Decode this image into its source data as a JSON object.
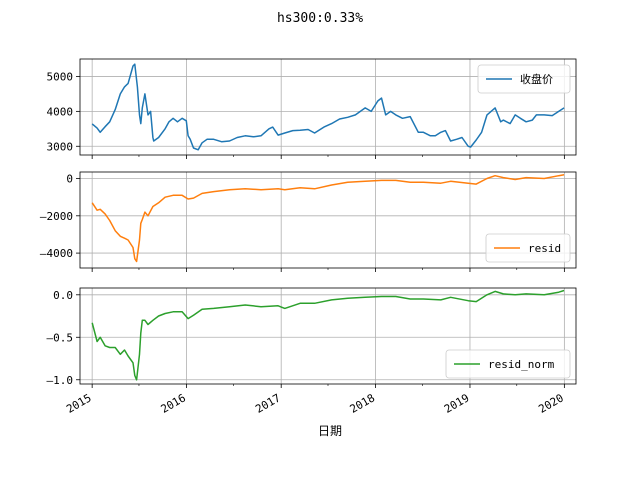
{
  "figure": {
    "title": "hs300:0.33%",
    "xlabel": "日期"
  },
  "chart_data": [
    {
      "type": "line",
      "title": "hs300:0.33%",
      "xlabel": "日期",
      "ylabel": "",
      "grid": true,
      "legend_placement": "upper right",
      "xlim": [
        "2014-11-15",
        "2020-02-15"
      ],
      "ylim": [
        2750,
        5500
      ],
      "yticks": [
        3000,
        4000,
        5000
      ],
      "ytick_labels": [
        "3000",
        "4000",
        "5000"
      ],
      "series": [
        {
          "name": "收盘价",
          "color": "#1f77b4",
          "x": [
            "2015-01-01",
            "2015-01-20",
            "2015-02-01",
            "2015-02-20",
            "2015-03-10",
            "2015-03-31",
            "2015-04-20",
            "2015-05-06",
            "2015-05-20",
            "2015-06-08",
            "2015-06-15",
            "2015-06-25",
            "2015-07-03",
            "2015-07-08",
            "2015-07-14",
            "2015-07-24",
            "2015-08-05",
            "2015-08-15",
            "2015-08-24",
            "2015-08-27",
            "2015-09-15",
            "2015-10-10",
            "2015-10-25",
            "2015-11-10",
            "2015-11-27",
            "2015-12-15",
            "2015-12-31",
            "2016-01-07",
            "2016-01-15",
            "2016-01-28",
            "2016-02-15",
            "2016-03-01",
            "2016-03-20",
            "2016-04-15",
            "2016-05-15",
            "2016-06-15",
            "2016-07-15",
            "2016-08-15",
            "2016-09-15",
            "2016-10-15",
            "2016-11-15",
            "2016-11-29",
            "2016-12-20",
            "2017-01-15",
            "2017-02-15",
            "2017-03-15",
            "2017-04-15",
            "2017-05-10",
            "2017-06-15",
            "2017-07-15",
            "2017-08-15",
            "2017-09-15",
            "2017-10-15",
            "2017-11-22",
            "2017-12-15",
            "2018-01-10",
            "2018-01-24",
            "2018-02-09",
            "2018-02-28",
            "2018-03-20",
            "2018-04-15",
            "2018-05-15",
            "2018-06-15",
            "2018-07-05",
            "2018-08-01",
            "2018-08-20",
            "2018-09-10",
            "2018-09-28",
            "2018-10-18",
            "2018-11-10",
            "2018-12-01",
            "2018-12-25",
            "2019-01-04",
            "2019-01-25",
            "2019-02-15",
            "2019-03-08",
            "2019-04-08",
            "2019-04-30",
            "2019-05-10",
            "2019-06-05",
            "2019-06-25",
            "2019-07-15",
            "2019-08-06",
            "2019-08-30",
            "2019-09-15",
            "2019-10-15",
            "2019-11-15",
            "2019-12-10",
            "2019-12-31"
          ],
          "y": [
            3640,
            3520,
            3400,
            3560,
            3700,
            4050,
            4500,
            4700,
            4800,
            5300,
            5350,
            4700,
            3900,
            3650,
            4100,
            4500,
            3900,
            4000,
            3250,
            3150,
            3250,
            3500,
            3700,
            3800,
            3700,
            3800,
            3730,
            3300,
            3200,
            2950,
            2900,
            3100,
            3200,
            3200,
            3130,
            3150,
            3250,
            3300,
            3270,
            3300,
            3500,
            3550,
            3320,
            3380,
            3450,
            3460,
            3480,
            3380,
            3550,
            3650,
            3780,
            3830,
            3900,
            4100,
            4000,
            4300,
            4380,
            3900,
            4000,
            3900,
            3800,
            3850,
            3400,
            3400,
            3300,
            3300,
            3400,
            3450,
            3150,
            3200,
            3250,
            3000,
            2980,
            3180,
            3400,
            3900,
            4100,
            3700,
            3750,
            3650,
            3900,
            3800,
            3700,
            3750,
            3900,
            3900,
            3880,
            4000,
            4100
          ]
        }
      ]
    },
    {
      "type": "line",
      "xlabel": "日期",
      "ylabel": "",
      "grid": true,
      "legend_placement": "lower right",
      "xlim": [
        "2014-11-15",
        "2020-02-15"
      ],
      "ylim": [
        -4800,
        350
      ],
      "yticks": [
        0,
        -2000,
        -4000
      ],
      "ytick_labels": [
        "0",
        "‒2000",
        "‒4000"
      ],
      "series": [
        {
          "name": "resid",
          "color": "#ff7f0e",
          "x": [
            "2015-01-01",
            "2015-01-20",
            "2015-02-01",
            "2015-02-20",
            "2015-03-10",
            "2015-03-31",
            "2015-04-20",
            "2015-05-06",
            "2015-05-20",
            "2015-06-08",
            "2015-06-15",
            "2015-06-22",
            "2015-07-03",
            "2015-07-08",
            "2015-07-14",
            "2015-07-24",
            "2015-08-05",
            "2015-08-24",
            "2015-09-15",
            "2015-10-10",
            "2015-11-10",
            "2015-12-15",
            "2016-01-07",
            "2016-01-28",
            "2016-03-01",
            "2016-04-15",
            "2016-06-15",
            "2016-08-15",
            "2016-10-15",
            "2016-12-20",
            "2017-01-15",
            "2017-03-15",
            "2017-05-10",
            "2017-07-15",
            "2017-09-15",
            "2017-11-22",
            "2018-01-24",
            "2018-03-20",
            "2018-05-15",
            "2018-07-05",
            "2018-09-10",
            "2018-10-18",
            "2018-12-25",
            "2019-01-25",
            "2019-03-08",
            "2019-04-08",
            "2019-05-10",
            "2019-06-25",
            "2019-08-06",
            "2019-10-15",
            "2019-12-10",
            "2019-12-31"
          ],
          "y": [
            -1300,
            -1700,
            -1650,
            -1900,
            -2250,
            -2800,
            -3100,
            -3200,
            -3300,
            -3700,
            -4300,
            -4450,
            -3300,
            -2400,
            -2200,
            -1800,
            -2000,
            -1500,
            -1300,
            -1000,
            -900,
            -900,
            -1100,
            -1050,
            -800,
            -700,
            -600,
            -550,
            -600,
            -550,
            -600,
            -500,
            -550,
            -350,
            -200,
            -150,
            -100,
            -100,
            -200,
            -200,
            -250,
            -150,
            -250,
            -300,
            0,
            150,
            50,
            -50,
            50,
            0,
            150,
            200
          ]
        }
      ]
    },
    {
      "type": "line",
      "xlabel": "日期",
      "ylabel": "",
      "grid": true,
      "legend_placement": "lower right",
      "xlim": [
        "2014-11-15",
        "2020-02-15"
      ],
      "ylim": [
        -1.05,
        0.08
      ],
      "yticks": [
        0.0,
        -0.5,
        -1.0
      ],
      "ytick_labels": [
        "0.0",
        "‒0.5",
        "‒1.0"
      ],
      "series": [
        {
          "name": "resid_norm",
          "color": "#2ca02c",
          "x": [
            "2015-01-01",
            "2015-01-20",
            "2015-02-01",
            "2015-02-20",
            "2015-03-10",
            "2015-03-31",
            "2015-04-20",
            "2015-05-06",
            "2015-05-20",
            "2015-06-08",
            "2015-06-15",
            "2015-06-22",
            "2015-07-03",
            "2015-07-08",
            "2015-07-14",
            "2015-07-24",
            "2015-08-05",
            "2015-08-24",
            "2015-09-15",
            "2015-10-10",
            "2015-11-10",
            "2015-12-15",
            "2016-01-07",
            "2016-01-28",
            "2016-03-01",
            "2016-04-15",
            "2016-06-15",
            "2016-08-15",
            "2016-10-15",
            "2016-12-20",
            "2017-01-15",
            "2017-03-15",
            "2017-05-10",
            "2017-07-15",
            "2017-09-15",
            "2017-11-22",
            "2018-01-24",
            "2018-03-20",
            "2018-05-15",
            "2018-07-05",
            "2018-09-10",
            "2018-10-18",
            "2018-12-25",
            "2019-01-25",
            "2019-03-08",
            "2019-04-08",
            "2019-05-10",
            "2019-06-25",
            "2019-08-06",
            "2019-10-15",
            "2019-12-10",
            "2019-12-31"
          ],
          "y": [
            -0.33,
            -0.55,
            -0.5,
            -0.6,
            -0.62,
            -0.62,
            -0.7,
            -0.65,
            -0.72,
            -0.8,
            -0.95,
            -1.0,
            -0.7,
            -0.45,
            -0.3,
            -0.3,
            -0.35,
            -0.3,
            -0.25,
            -0.22,
            -0.2,
            -0.2,
            -0.28,
            -0.24,
            -0.17,
            -0.16,
            -0.14,
            -0.12,
            -0.14,
            -0.13,
            -0.16,
            -0.1,
            -0.1,
            -0.06,
            -0.04,
            -0.03,
            -0.02,
            -0.02,
            -0.05,
            -0.05,
            -0.06,
            -0.03,
            -0.07,
            -0.08,
            0.0,
            0.04,
            0.01,
            0.0,
            0.01,
            0.0,
            0.03,
            0.05
          ]
        }
      ]
    }
  ],
  "x_axis": {
    "ticks": [
      "2015-01-01",
      "2016-01-01",
      "2017-01-01",
      "2018-01-01",
      "2019-01-01",
      "2020-01-01"
    ],
    "tick_labels": [
      "2015",
      "2016",
      "2017",
      "2018",
      "2019",
      "2020"
    ],
    "minor_ticks": [
      "2015-07-01",
      "2016-07-01",
      "2017-07-01",
      "2018-07-01",
      "2019-07-01"
    ]
  }
}
